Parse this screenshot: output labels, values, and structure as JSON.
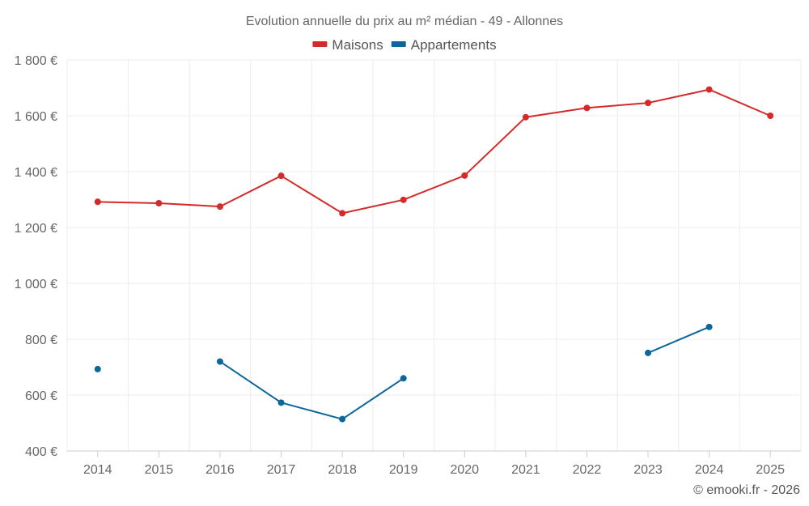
{
  "chart_data": {
    "type": "line",
    "title": "Evolution annuelle du prix au m² médian - 49 - Allonnes",
    "categories": [
      "2014",
      "2015",
      "2016",
      "2017",
      "2018",
      "2019",
      "2020",
      "2021",
      "2022",
      "2023",
      "2024",
      "2025"
    ],
    "series": [
      {
        "name": "Maisons",
        "color": "#d42a2a",
        "values": [
          1292,
          1287,
          1275,
          1385,
          1251,
          1299,
          1386,
          1595,
          1628,
          1646,
          1694,
          1600
        ]
      },
      {
        "name": "Appartements",
        "color": "#0b6699",
        "values": [
          693,
          null,
          720,
          573,
          514,
          660,
          null,
          null,
          null,
          751,
          844,
          null
        ]
      }
    ],
    "y_ticks": [
      "400 €",
      "600 €",
      "800 €",
      "1 000 €",
      "1 200 €",
      "1 400 €",
      "1 600 €",
      "1 800 €"
    ],
    "ylim": [
      400,
      1800
    ],
    "ytick_values": [
      400,
      600,
      800,
      1000,
      1200,
      1400,
      1600,
      1800
    ],
    "grid": true,
    "legend": "top-center",
    "xlabel": "",
    "ylabel": ""
  },
  "credit": "© emooki.fr - 2026"
}
